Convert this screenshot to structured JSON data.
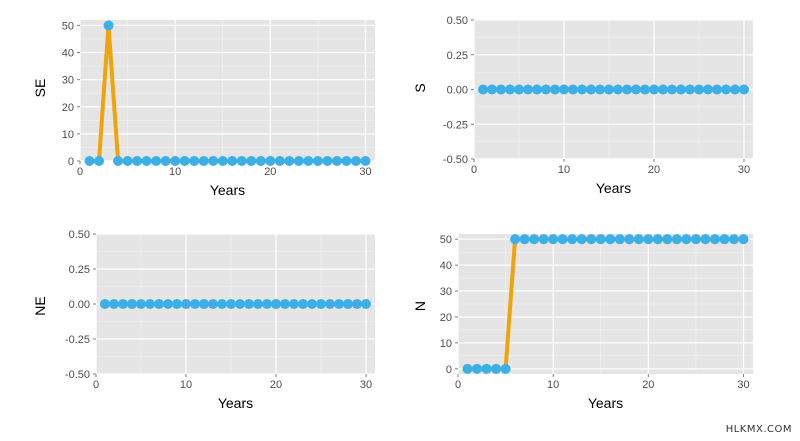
{
  "watermark": "HLKMX.COM",
  "colors": {
    "panel_bg": "#e5e5e5",
    "grid_major": "#ffffff",
    "grid_minor": "#f2f2f2",
    "line": "#f0a30a",
    "point": "#3cb0e6",
    "tick_text": "#4d4d4d",
    "axis_title": "#000000"
  },
  "chart_data": [
    {
      "type": "line",
      "ylabel": "SE",
      "xlabel": "Years",
      "xlim": [
        0,
        31
      ],
      "ylim": [
        0,
        52
      ],
      "xticks": [
        "0",
        "10",
        "20",
        "30"
      ],
      "yticks": [
        "0",
        "10",
        "20",
        "30",
        "40",
        "50"
      ],
      "grid": true,
      "x": [
        1,
        2,
        3,
        4,
        5,
        6,
        7,
        8,
        9,
        10,
        11,
        12,
        13,
        14,
        15,
        16,
        17,
        18,
        19,
        20,
        21,
        22,
        23,
        24,
        25,
        26,
        27,
        28,
        29,
        30
      ],
      "y": [
        0,
        0,
        50,
        0,
        0,
        0,
        0,
        0,
        0,
        0,
        0,
        0,
        0,
        0,
        0,
        0,
        0,
        0,
        0,
        0,
        0,
        0,
        0,
        0,
        0,
        0,
        0,
        0,
        0,
        0
      ]
    },
    {
      "type": "line",
      "ylabel": "S",
      "xlabel": "Years",
      "xlim": [
        0,
        31
      ],
      "ylim": [
        -0.5,
        0.5
      ],
      "xticks": [
        "0",
        "10",
        "20",
        "30"
      ],
      "yticks": [
        "-0.50",
        "-0.25",
        "0.00",
        "0.25",
        "0.50"
      ],
      "grid": true,
      "x": [
        1,
        2,
        3,
        4,
        5,
        6,
        7,
        8,
        9,
        10,
        11,
        12,
        13,
        14,
        15,
        16,
        17,
        18,
        19,
        20,
        21,
        22,
        23,
        24,
        25,
        26,
        27,
        28,
        29,
        30
      ],
      "y": [
        0,
        0,
        0,
        0,
        0,
        0,
        0,
        0,
        0,
        0,
        0,
        0,
        0,
        0,
        0,
        0,
        0,
        0,
        0,
        0,
        0,
        0,
        0,
        0,
        0,
        0,
        0,
        0,
        0,
        0
      ]
    },
    {
      "type": "line",
      "ylabel": "NE",
      "xlabel": "Years",
      "xlim": [
        0,
        31
      ],
      "ylim": [
        -0.5,
        0.5
      ],
      "xticks": [
        "0",
        "10",
        "20",
        "30"
      ],
      "yticks": [
        "-0.50",
        "-0.25",
        "0.00",
        "0.25",
        "0.50"
      ],
      "grid": true,
      "x": [
        1,
        2,
        3,
        4,
        5,
        6,
        7,
        8,
        9,
        10,
        11,
        12,
        13,
        14,
        15,
        16,
        17,
        18,
        19,
        20,
        21,
        22,
        23,
        24,
        25,
        26,
        27,
        28,
        29,
        30
      ],
      "y": [
        0,
        0,
        0,
        0,
        0,
        0,
        0,
        0,
        0,
        0,
        0,
        0,
        0,
        0,
        0,
        0,
        0,
        0,
        0,
        0,
        0,
        0,
        0,
        0,
        0,
        0,
        0,
        0,
        0,
        0
      ]
    },
    {
      "type": "line",
      "ylabel": "N",
      "xlabel": "Years",
      "xlim": [
        0,
        31
      ],
      "ylim": [
        -2,
        52
      ],
      "xticks": [
        "0",
        "10",
        "20",
        "30"
      ],
      "yticks": [
        "0",
        "10",
        "20",
        "30",
        "40",
        "50"
      ],
      "grid": true,
      "x": [
        1,
        2,
        3,
        4,
        5,
        6,
        7,
        8,
        9,
        10,
        11,
        12,
        13,
        14,
        15,
        16,
        17,
        18,
        19,
        20,
        21,
        22,
        23,
        24,
        25,
        26,
        27,
        28,
        29,
        30
      ],
      "y": [
        0,
        0,
        0,
        0,
        0,
        50,
        50,
        50,
        50,
        50,
        50,
        50,
        50,
        50,
        50,
        50,
        50,
        50,
        50,
        50,
        50,
        50,
        50,
        50,
        50,
        50,
        50,
        50,
        50,
        50
      ]
    }
  ]
}
